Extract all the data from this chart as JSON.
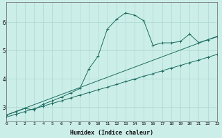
{
  "xlabel": "Humidex (Indice chaleur)",
  "xlim": [
    0,
    23
  ],
  "ylim": [
    2.5,
    6.7
  ],
  "yticks": [
    3,
    4,
    5,
    6
  ],
  "xticks": [
    0,
    1,
    2,
    3,
    4,
    5,
    6,
    7,
    8,
    9,
    10,
    11,
    12,
    13,
    14,
    15,
    16,
    17,
    18,
    19,
    20,
    21,
    22,
    23
  ],
  "bg_color": "#cceee8",
  "line_color": "#1a6b60",
  "grid_color": "#aad8d0",
  "line1_x": [
    0,
    1,
    2,
    3,
    4,
    5,
    6,
    7,
    8,
    9,
    10,
    11,
    12,
    13,
    14,
    15,
    16,
    17,
    18,
    19,
    20,
    21,
    22,
    23
  ],
  "line1_y": [
    2.65,
    2.74,
    2.84,
    2.94,
    3.03,
    3.13,
    3.22,
    3.32,
    3.42,
    3.51,
    3.61,
    3.7,
    3.8,
    3.9,
    3.99,
    4.09,
    4.18,
    4.28,
    4.38,
    4.47,
    4.57,
    4.66,
    4.76,
    4.86
  ],
  "line2_x": [
    0,
    1,
    2,
    3,
    4,
    5,
    6,
    7,
    8,
    9,
    10,
    11,
    12,
    13,
    14,
    15,
    16,
    17,
    18,
    19,
    20,
    21,
    22,
    23
  ],
  "line2_y": [
    2.72,
    2.83,
    2.95,
    2.9,
    3.1,
    3.22,
    3.35,
    3.5,
    3.65,
    4.35,
    4.8,
    5.75,
    6.1,
    6.33,
    6.25,
    6.05,
    5.18,
    5.27,
    5.27,
    5.32,
    5.58,
    5.28,
    5.38,
    5.48
  ]
}
